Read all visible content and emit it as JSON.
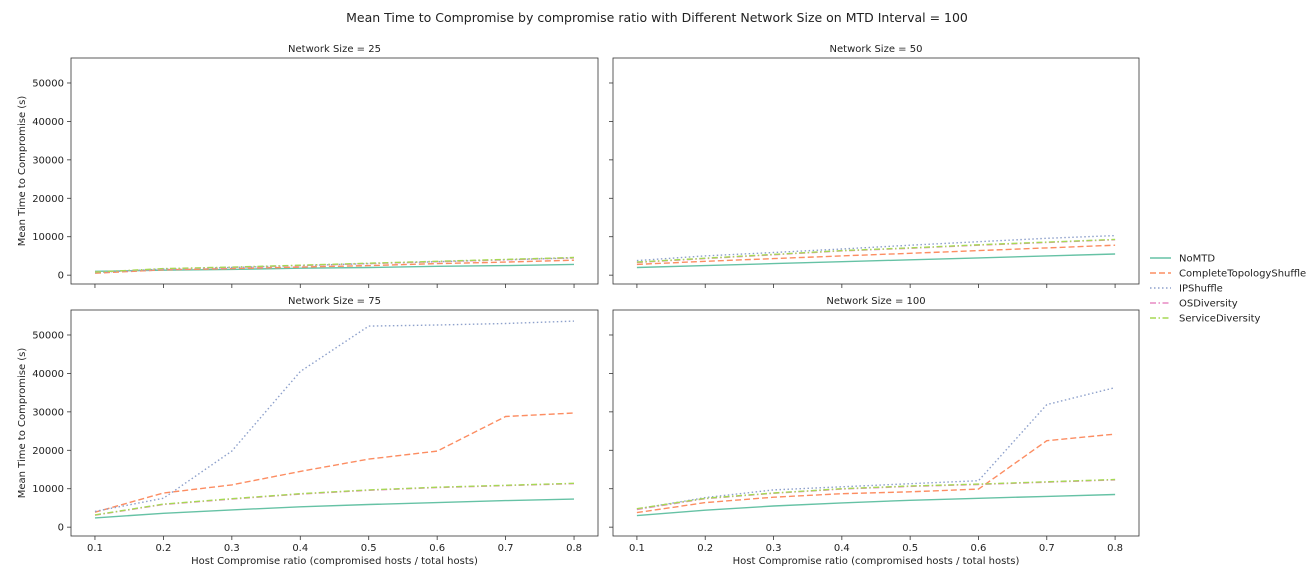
{
  "chart_data": {
    "type": "line",
    "title": "Mean Time to Compromise by compromise ratio with Different Network Size on MTD Interval = 100",
    "xlabel": "Host Compromise ratio (compromised hosts / total hosts)",
    "ylabel": "Mean Time to Compromise (s)",
    "x": [
      0.1,
      0.2,
      0.3,
      0.4,
      0.5,
      0.6,
      0.7,
      0.8
    ],
    "x_ticks": [
      "0.1",
      "0.2",
      "0.3",
      "0.4",
      "0.5",
      "0.6",
      "0.7",
      "0.8"
    ],
    "y_ticks": [
      "0",
      "10000",
      "20000",
      "30000",
      "40000",
      "50000"
    ],
    "ylim": [
      -2300,
      56500
    ],
    "xlim": [
      0.065,
      0.835
    ],
    "grid": false,
    "legend_position": "right",
    "legend": [
      {
        "name": "NoMTD",
        "color": "#66c2a5",
        "dash": "solid"
      },
      {
        "name": "CompleteTopologyShuffle",
        "color": "#fc8d62",
        "dash": "dashed"
      },
      {
        "name": "IPShuffle",
        "color": "#8da0cb",
        "dash": "dotted"
      },
      {
        "name": "OSDiversity",
        "color": "#e78ac3",
        "dash": "dashdot"
      },
      {
        "name": "ServiceDiversity",
        "color": "#a6d854",
        "dash": "dashdot"
      }
    ],
    "panels": [
      {
        "title": "Network Size = 25",
        "series": [
          {
            "name": "NoMTD",
            "values": [
              1000,
              1300,
              1500,
              1800,
              2000,
              2300,
              2500,
              2800
            ]
          },
          {
            "name": "CompleteTopologyShuffle",
            "values": [
              500,
              1400,
              1700,
              2100,
              2500,
              3000,
              3400,
              3900
            ]
          },
          {
            "name": "IPShuffle",
            "values": [
              700,
              1600,
              2000,
              2500,
              3000,
              3500,
              4000,
              4500
            ]
          },
          {
            "name": "OSDiversity",
            "values": [
              800,
              1600,
              2000,
              2500,
              3000,
              3500,
              4000,
              4500
            ]
          },
          {
            "name": "ServiceDiversity",
            "values": [
              800,
              1700,
              2100,
              2600,
              3100,
              3600,
              4100,
              4600
            ]
          }
        ]
      },
      {
        "title": "Network Size = 50",
        "series": [
          {
            "name": "NoMTD",
            "values": [
              2000,
              2500,
              3000,
              3500,
              4000,
              4500,
              5000,
              5500
            ]
          },
          {
            "name": "CompleteTopologyShuffle",
            "values": [
              2800,
              3600,
              4300,
              5000,
              5700,
              6400,
              7100,
              7800
            ]
          },
          {
            "name": "IPShuffle",
            "values": [
              3800,
              5000,
              5900,
              6800,
              7800,
              8700,
              9600,
              10300
            ]
          },
          {
            "name": "OSDiversity",
            "values": [
              3300,
              4300,
              5300,
              6300,
              7000,
              7800,
              8500,
              9200
            ]
          },
          {
            "name": "ServiceDiversity",
            "values": [
              3400,
              4400,
              5400,
              6400,
              7100,
              7900,
              8600,
              9300
            ]
          }
        ]
      },
      {
        "title": "Network Size = 75",
        "series": [
          {
            "name": "NoMTD",
            "values": [
              2400,
              3600,
              4500,
              5300,
              5900,
              6400,
              6900,
              7300
            ]
          },
          {
            "name": "CompleteTopologyShuffle",
            "values": [
              3900,
              8900,
              11000,
              14500,
              17700,
              19800,
              28800,
              29700
            ]
          },
          {
            "name": "IPShuffle",
            "values": [
              4100,
              7500,
              19800,
              40500,
              52300,
              52600,
              53000,
              53600
            ]
          },
          {
            "name": "OSDiversity",
            "values": [
              3100,
              5900,
              7300,
              8600,
              9600,
              10300,
              10800,
              11300
            ]
          },
          {
            "name": "ServiceDiversity",
            "values": [
              3200,
              6000,
              7400,
              8700,
              9700,
              10400,
              10900,
              11400
            ]
          }
        ]
      },
      {
        "title": "Network Size = 100",
        "series": [
          {
            "name": "NoMTD",
            "values": [
              3000,
              4400,
              5500,
              6300,
              7000,
              7500,
              8000,
              8500
            ]
          },
          {
            "name": "CompleteTopologyShuffle",
            "values": [
              3800,
              6400,
              7800,
              8700,
              9200,
              9900,
              22500,
              24200
            ]
          },
          {
            "name": "IPShuffle",
            "values": [
              4700,
              7700,
              9700,
              10500,
              11300,
              12100,
              31900,
              36300
            ]
          },
          {
            "name": "OSDiversity",
            "values": [
              4600,
              7400,
              8800,
              9900,
              10600,
              11100,
              11700,
              12300
            ]
          },
          {
            "name": "ServiceDiversity",
            "values": [
              4800,
              7500,
              8900,
              10000,
              10700,
              11200,
              11800,
              12400
            ]
          }
        ]
      }
    ]
  }
}
